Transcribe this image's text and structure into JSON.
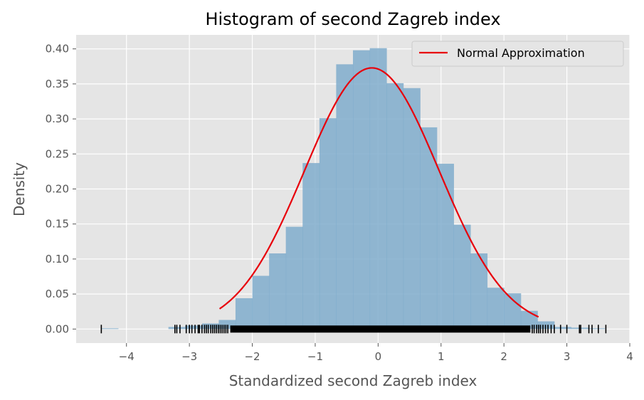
{
  "chart_data": {
    "type": "bar",
    "title": "Histogram of second Zagreb index",
    "xlabel": "Standardized second Zagreb index",
    "ylabel": "Density",
    "xlim": [
      -4.8,
      4.0
    ],
    "ylim": [
      -0.02,
      0.42
    ],
    "xticks": [
      -4,
      -3,
      -2,
      -1,
      0,
      1,
      2,
      3,
      4
    ],
    "xtick_labels": [
      "−4",
      "−3",
      "−2",
      "−1",
      "0",
      "1",
      "2",
      "3",
      "4"
    ],
    "yticks": [
      0.0,
      0.05,
      0.1,
      0.15,
      0.2,
      0.25,
      0.3,
      0.35,
      0.4
    ],
    "ytick_labels": [
      "0.00",
      "0.05",
      "0.10",
      "0.15",
      "0.20",
      "0.25",
      "0.30",
      "0.35",
      "0.40"
    ],
    "grid": true,
    "legend_position": "top-right",
    "histogram": {
      "name": "",
      "color": "#7ba9cb",
      "bin_edges": [
        -4.4,
        -4.133,
        -3.867,
        -3.6,
        -3.333,
        -3.067,
        -2.8,
        -2.533,
        -2.267,
        -2.0,
        -1.733,
        -1.467,
        -1.2,
        -0.933,
        -0.667,
        -0.4,
        -0.133,
        0.133,
        0.4,
        0.667,
        0.933,
        1.2,
        1.467,
        1.733,
        2.0,
        2.267,
        2.533,
        2.8,
        3.067,
        3.333,
        3.6
      ],
      "density": [
        0.001,
        0.0,
        0.0,
        0.0,
        0.003,
        0.005,
        0.008,
        0.013,
        0.044,
        0.076,
        0.108,
        0.146,
        0.237,
        0.301,
        0.378,
        0.398,
        0.401,
        0.351,
        0.344,
        0.288,
        0.236,
        0.149,
        0.108,
        0.059,
        0.051,
        0.026,
        0.011,
        0.003,
        0.002,
        0.001
      ]
    },
    "normal_curve": {
      "name": "Normal Approximation",
      "color": "#e8000b",
      "mean": -0.1,
      "std": 1.07,
      "x_range": [
        -2.52,
        2.55
      ]
    },
    "rug": {
      "color": "#000000",
      "dense_range": [
        -2.35,
        2.42
      ],
      "values": [
        -4.4,
        -3.23,
        -3.2,
        -3.15,
        -3.05,
        -3.0,
        -2.96,
        -2.91,
        -2.86,
        -2.84,
        -2.8,
        -2.76,
        -2.73,
        -2.7,
        -2.66,
        -2.63,
        -2.6,
        -2.57,
        -2.54,
        -2.51,
        -2.48,
        -2.45,
        -2.42,
        -2.39,
        2.45,
        2.48,
        2.52,
        2.55,
        2.58,
        2.62,
        2.66,
        2.7,
        2.75,
        2.8,
        2.9,
        3.0,
        3.2,
        3.22,
        3.35,
        3.4,
        3.5,
        3.62
      ]
    }
  }
}
